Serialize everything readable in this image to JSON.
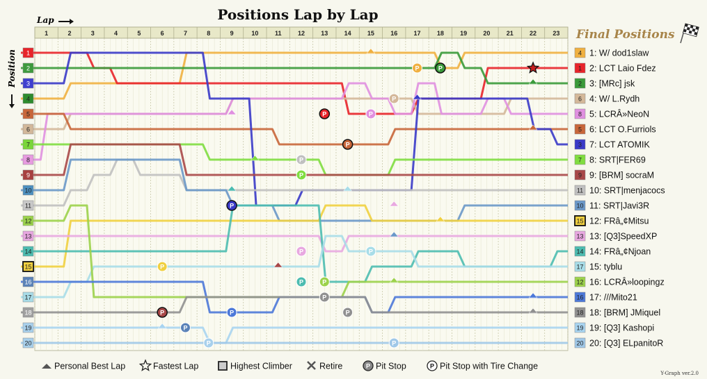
{
  "chart_data": {
    "type": "line",
    "title": "Positions Lap by Lap",
    "xlabel": "Lap",
    "ylabel": "Position",
    "final_title": "Final Positions",
    "laps": [
      1,
      2,
      3,
      4,
      5,
      6,
      7,
      8,
      9,
      10,
      11,
      12,
      13,
      14,
      15,
      16,
      17,
      18,
      19,
      20,
      21,
      22,
      23
    ],
    "positions": [
      1,
      2,
      3,
      4,
      5,
      6,
      7,
      8,
      9,
      10,
      11,
      12,
      13,
      14,
      15,
      16,
      17,
      18,
      19,
      20
    ],
    "start_colors": [
      "#e8242a",
      "#3e9a3e",
      "#3f3fd0",
      "#2e8b2e",
      "#c8663a",
      "#d2b89a",
      "#7ad63a",
      "#e79be0",
      "#a84040",
      "#4c8fbf",
      "#c8c8c8",
      "#9bd24b",
      "#e7a6e0",
      "#4cbcb0",
      "#f0d040",
      "#5a82b8",
      "#a8dce8",
      "#a0a0a0",
      "#a8d0ec",
      "#a8d0ec"
    ],
    "series": [
      {
        "label": "1: W/ dod1slaw",
        "color": "#f0b040",
        "badge": "4",
        "pos": [
          4,
          3,
          3,
          3,
          3,
          3,
          1,
          1,
          1,
          1,
          1,
          1,
          1,
          1,
          1,
          1,
          1,
          2,
          1,
          1,
          1,
          1,
          1
        ]
      },
      {
        "label": "2: LCT Laio Fdez",
        "color": "#e8242a",
        "badge": "1",
        "pos": [
          1,
          1,
          2,
          3,
          3,
          3,
          3,
          3,
          3,
          3,
          3,
          3,
          3,
          5,
          5,
          5,
          4,
          4,
          4,
          2,
          2,
          2,
          2
        ]
      },
      {
        "label": "3: [MRc] jsk",
        "color": "#3a9a3a",
        "badge": "2",
        "pos": [
          2,
          2,
          2,
          2,
          2,
          2,
          2,
          2,
          2,
          2,
          2,
          2,
          2,
          2,
          2,
          2,
          2,
          1,
          2,
          3,
          3,
          3,
          3
        ]
      },
      {
        "label": "4: W/ L.Rydh",
        "color": "#d4b89a",
        "badge": "6",
        "pos": [
          6,
          5,
          5,
          5,
          5,
          5,
          5,
          5,
          4,
          4,
          4,
          4,
          4,
          4,
          4,
          4,
          5,
          5,
          5,
          5,
          4,
          4,
          4
        ]
      },
      {
        "label": "5: LCRÂ»NeoN",
        "color": "#e090e0",
        "badge": "8",
        "pos": [
          5,
          5,
          5,
          5,
          5,
          5,
          5,
          5,
          4,
          4,
          4,
          4,
          4,
          3,
          4,
          5,
          3,
          5,
          5,
          4,
          5,
          5,
          5
        ]
      },
      {
        "label": "6: LCT O.Furriols",
        "color": "#c8663a",
        "badge": "5",
        "pos": [
          5,
          6,
          6,
          6,
          6,
          6,
          6,
          6,
          6,
          6,
          7,
          7,
          7,
          7,
          7,
          6,
          6,
          6,
          6,
          6,
          6,
          6,
          6
        ]
      },
      {
        "label": "7: LCT ATOMIK",
        "color": "#3a3ac8",
        "badge": "3",
        "pos": [
          3,
          1,
          1,
          1,
          1,
          1,
          1,
          4,
          4,
          11,
          11,
          10,
          10,
          10,
          10,
          10,
          4,
          4,
          4,
          4,
          4,
          6,
          7
        ]
      },
      {
        "label": "8: SRT|FER69",
        "color": "#80dd40",
        "badge": "7",
        "pos": [
          7,
          7,
          7,
          7,
          7,
          7,
          7,
          8,
          8,
          8,
          8,
          8,
          9,
          9,
          9,
          8,
          8,
          8,
          8,
          8,
          8,
          8,
          8
        ]
      },
      {
        "label": "9: [BRM] socraM",
        "color": "#a84848",
        "badge": "9",
        "pos": [
          9,
          7,
          7,
          7,
          7,
          7,
          9,
          9,
          9,
          9,
          9,
          9,
          9,
          9,
          9,
          9,
          9,
          9,
          9,
          9,
          9,
          9,
          9
        ]
      },
      {
        "label": "10: SRT|menjacocs",
        "color": "#c0c0c0",
        "badge": "11",
        "pos": [
          11,
          10,
          9,
          8,
          9,
          9,
          10,
          10,
          10,
          10,
          10,
          10,
          10,
          10,
          10,
          10,
          10,
          10,
          10,
          10,
          10,
          10,
          10
        ]
      },
      {
        "label": "11: SRT|Javi3R",
        "color": "#6a98c8",
        "badge": "10",
        "pos": [
          10,
          8,
          8,
          8,
          8,
          8,
          10,
          10,
          11,
          11,
          12,
          12,
          12,
          12,
          12,
          12,
          12,
          12,
          11,
          11,
          11,
          11,
          11
        ]
      },
      {
        "label": "12: FRâ„¢Mitsu",
        "color": "#f0d040",
        "badge": "15",
        "pos": [
          15,
          12,
          12,
          12,
          12,
          12,
          12,
          12,
          12,
          12,
          12,
          12,
          11,
          11,
          12,
          12,
          12,
          12,
          12,
          12,
          12,
          12,
          12
        ]
      },
      {
        "label": "13: [Q3]SpeedXP",
        "color": "#e8a8e0",
        "badge": "13",
        "pos": [
          13,
          13,
          13,
          13,
          13,
          13,
          13,
          13,
          13,
          13,
          13,
          13,
          14,
          13,
          13,
          13,
          13,
          13,
          13,
          13,
          13,
          13,
          13
        ]
      },
      {
        "label": "14: FRâ„¢Njoan",
        "color": "#4cbcb0",
        "badge": "14",
        "pos": [
          14,
          14,
          14,
          14,
          14,
          14,
          14,
          14,
          11,
          11,
          11,
          11,
          16,
          16,
          15,
          15,
          14,
          14,
          15,
          15,
          15,
          15,
          14
        ]
      },
      {
        "label": "15: tyblu",
        "color": "#a8dde8",
        "badge": "17",
        "pos": [
          17,
          16,
          15,
          15,
          15,
          15,
          15,
          15,
          15,
          15,
          15,
          15,
          13,
          14,
          14,
          14,
          15,
          15,
          15,
          15,
          15,
          15,
          15
        ]
      },
      {
        "label": "16: LCRÂ»loopingz",
        "color": "#9cd24b",
        "badge": "12",
        "pos": [
          12,
          11,
          17,
          17,
          17,
          17,
          17,
          17,
          17,
          17,
          17,
          17,
          17,
          16,
          16,
          16,
          16,
          16,
          16,
          16,
          16,
          16,
          16
        ]
      },
      {
        "label": "17: ///Mito21",
        "color": "#4c78d8",
        "badge": "16",
        "pos": [
          16,
          16,
          16,
          16,
          16,
          16,
          16,
          18,
          18,
          18,
          17,
          17,
          17,
          17,
          18,
          17,
          17,
          17,
          17,
          17,
          17,
          17,
          17
        ]
      },
      {
        "label": "18: [BRM] JMiquel",
        "color": "#909090",
        "badge": "18",
        "pos": [
          18,
          18,
          18,
          18,
          18,
          18,
          17,
          17,
          17,
          17,
          17,
          17,
          17,
          17,
          18,
          18,
          18,
          18,
          18,
          18,
          18,
          18,
          18
        ]
      },
      {
        "label": "19: [Q3] Kashopi",
        "color": "#a8d4f0",
        "badge": "19",
        "pos": [
          19,
          19,
          19,
          19,
          19,
          19,
          19,
          20,
          19,
          19,
          19,
          19,
          19,
          19,
          19,
          19,
          19,
          19,
          19,
          19,
          19,
          19,
          19
        ]
      },
      {
        "label": "20: [Q3] ELpanitoR",
        "color": "#a0c8e8",
        "badge": "20",
        "pos": [
          20,
          20,
          20,
          20,
          20,
          20,
          20,
          20,
          20,
          20,
          20,
          20,
          20,
          20,
          20,
          20,
          20,
          20,
          20,
          20,
          20,
          20,
          20
        ]
      }
    ],
    "events": [
      {
        "type": "best",
        "lap": 15,
        "pos": 1,
        "color": "#f0b040"
      },
      {
        "type": "best",
        "lap": 22,
        "pos": 3,
        "color": "#3a9a3a"
      },
      {
        "type": "best",
        "lap": 9,
        "pos": 5,
        "color": "#e090e0"
      },
      {
        "type": "best",
        "lap": 15,
        "pos": 5,
        "color": "#d4b89a"
      },
      {
        "type": "best",
        "lap": 17,
        "pos": 4,
        "color": "#3a3ac8"
      },
      {
        "type": "best",
        "lap": 22,
        "pos": 6,
        "color": "#c8663a"
      },
      {
        "type": "best",
        "lap": 10,
        "pos": 8,
        "color": "#80dd40"
      },
      {
        "type": "best",
        "lap": 9,
        "pos": 10,
        "color": "#4cbcb0"
      },
      {
        "type": "best",
        "lap": 16,
        "pos": 11,
        "color": "#e8a8e0"
      },
      {
        "type": "best",
        "lap": 18,
        "pos": 12,
        "color": "#f0d040"
      },
      {
        "type": "best",
        "lap": 16,
        "pos": 13,
        "color": "#6a98c8"
      },
      {
        "type": "best",
        "lap": 16,
        "pos": 16,
        "color": "#9cd24b"
      },
      {
        "type": "best",
        "lap": 22,
        "pos": 17,
        "color": "#4c78d8"
      },
      {
        "type": "best",
        "lap": 22,
        "pos": 18,
        "color": "#909090"
      },
      {
        "type": "best",
        "lap": 6,
        "pos": 19,
        "color": "#a8d4f0"
      },
      {
        "type": "best",
        "lap": 14,
        "pos": 10,
        "color": "#a8dde8"
      },
      {
        "type": "best",
        "lap": 11,
        "pos": 15,
        "color": "#a84848"
      },
      {
        "type": "fastest",
        "lap": 22,
        "pos": 2
      },
      {
        "type": "pit",
        "lap": 17,
        "pos": 2,
        "color": "#f0b040",
        "change": false
      },
      {
        "type": "pit",
        "lap": 18,
        "pos": 2,
        "color": "#3a9a3a",
        "change": true
      },
      {
        "type": "pit",
        "lap": 16,
        "pos": 4,
        "color": "#d4b89a",
        "change": false
      },
      {
        "type": "pit",
        "lap": 13,
        "pos": 5,
        "color": "#e8242a",
        "change": true
      },
      {
        "type": "pit",
        "lap": 15,
        "pos": 5,
        "color": "#e090e0",
        "change": false
      },
      {
        "type": "pit",
        "lap": 14,
        "pos": 7,
        "color": "#c8663a",
        "change": true
      },
      {
        "type": "pit",
        "lap": 12,
        "pos": 8,
        "color": "#c0c0c0",
        "change": false
      },
      {
        "type": "pit",
        "lap": 12,
        "pos": 9,
        "color": "#80dd40",
        "change": false
      },
      {
        "type": "pit",
        "lap": 9,
        "pos": 11,
        "color": "#3a3ac8",
        "change": true
      },
      {
        "type": "pit",
        "lap": 12,
        "pos": 14,
        "color": "#e8a8e0",
        "change": false
      },
      {
        "type": "pit",
        "lap": 15,
        "pos": 14,
        "color": "#a8dde8",
        "change": false
      },
      {
        "type": "pit",
        "lap": 6,
        "pos": 15,
        "color": "#f0d040",
        "change": false
      },
      {
        "type": "pit",
        "lap": 12,
        "pos": 16,
        "color": "#4cbcb0",
        "change": false
      },
      {
        "type": "pit",
        "lap": 13,
        "pos": 16,
        "color": "#9cd24b",
        "change": false
      },
      {
        "type": "pit",
        "lap": 13,
        "pos": 17,
        "color": "#909090",
        "change": false
      },
      {
        "type": "pit",
        "lap": 6,
        "pos": 18,
        "color": "#a84848",
        "change": true
      },
      {
        "type": "pit",
        "lap": 9,
        "pos": 18,
        "color": "#4c78d8",
        "change": false
      },
      {
        "type": "pit",
        "lap": 14,
        "pos": 18,
        "color": "#909090",
        "change": false
      },
      {
        "type": "pit",
        "lap": 7,
        "pos": 19,
        "color": "#5a82b8",
        "change": false
      },
      {
        "type": "pit",
        "lap": 8,
        "pos": 20,
        "color": "#a8d0ec",
        "change": false
      },
      {
        "type": "pit",
        "lap": 16,
        "pos": 20,
        "color": "#a0c8e8",
        "change": false
      }
    ],
    "legend": [
      {
        "type": "best",
        "label": "Personal Best Lap"
      },
      {
        "type": "fastest",
        "label": "Fastest Lap"
      },
      {
        "type": "climber",
        "label": "Highest Climber"
      },
      {
        "type": "retire",
        "label": "Retire"
      },
      {
        "type": "pit",
        "label": "Pit Stop"
      },
      {
        "type": "pitchange",
        "label": "Pit Stop with Tire Change"
      }
    ],
    "highest_climber_start": 15,
    "highest_climber_final": 15,
    "pit_letter": "P",
    "version": "Y-Graph ver.2.0"
  }
}
